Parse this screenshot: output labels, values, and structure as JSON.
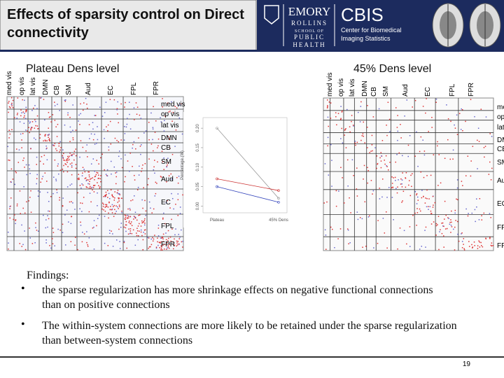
{
  "header": {
    "title": "Effects of sparsity control on Direct connectivity",
    "emory": "EMORY",
    "rollins": "ROLLINS",
    "school": "SCHOOL OF",
    "public": "PUBLIC",
    "health": "HEALTH",
    "cbis": "CBIS",
    "cbis_line1": "Center for Biomedical",
    "cbis_line2": "Imaging Statistics"
  },
  "panels": {
    "left_label": "Plateau Dens level",
    "right_label": "45% Dens level",
    "systems": [
      "med vis",
      "op vis",
      "lat vis",
      "DMN",
      "CB",
      "SM",
      "Aud",
      "EC",
      "FPL",
      "FPR"
    ]
  },
  "inner_chart": {
    "type": "line",
    "categories": [
      "Plateau",
      "45% Dens"
    ],
    "ylabel": "Percentage (%)",
    "series": [
      {
        "color": "#999999",
        "values": [
          0.2,
          0.02
        ]
      },
      {
        "color": "#cc3333",
        "values": [
          0.07,
          0.04
        ]
      },
      {
        "color": "#3344bb",
        "values": [
          0.05,
          0.01
        ]
      }
    ],
    "ylim": [
      -0.01,
      0.22
    ],
    "yticks": [
      {
        "value": 0,
        "label": "0.00"
      },
      {
        "value": 0.05,
        "label": "0.05"
      },
      {
        "value": 0.1,
        "label": "0.10"
      },
      {
        "value": 0.15,
        "label": "0.15"
      },
      {
        "value": 0.2,
        "label": "0.20"
      }
    ]
  },
  "findings": {
    "heading": "Findings:",
    "bullets": [
      "the sparse regularization has more shrinkage effects on negative functional connections than on positive connections",
      "The within-system connections are more likely to be retained under the sparse regularization than between-system connections"
    ]
  },
  "page_number": "19"
}
